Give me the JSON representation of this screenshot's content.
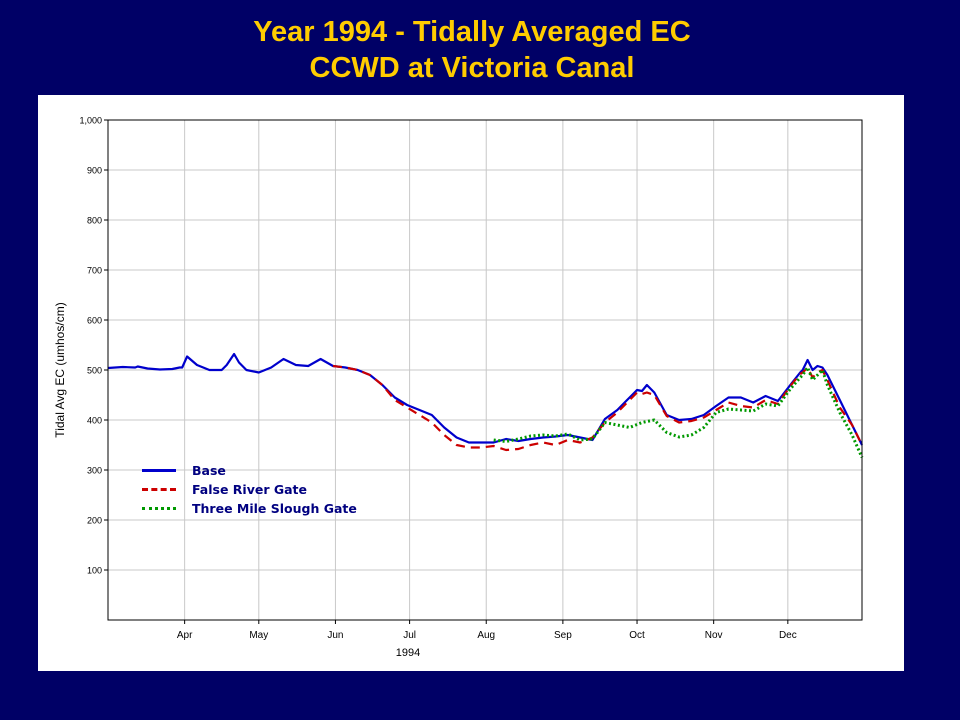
{
  "slide": {
    "title_line1": "Year 1994 - Tidally Averaged EC",
    "title_line2": "CCWD at Victoria Canal",
    "background": "#000066",
    "title_color": "#FFCC00"
  },
  "chart_data": {
    "type": "line",
    "title": "",
    "xlabel": "1994",
    "ylabel": "Tidal Avg EC (umhos/cm)",
    "x_unit": "day_of_year_1994",
    "xlim": [
      60,
      365
    ],
    "ylim": [
      0,
      1000
    ],
    "yticks": [
      100,
      200,
      300,
      400,
      500,
      600,
      700,
      800,
      900,
      1000
    ],
    "ytick_labels": [
      "100",
      "200",
      "300",
      "400",
      "500",
      "600",
      "700",
      "800",
      "900",
      "1,000"
    ],
    "xticks": [
      {
        "day": 91,
        "label": "Apr"
      },
      {
        "day": 121,
        "label": "May"
      },
      {
        "day": 152,
        "label": "Jun"
      },
      {
        "day": 182,
        "label": "Jul"
      },
      {
        "day": 213,
        "label": "Aug"
      },
      {
        "day": 244,
        "label": "Sep"
      },
      {
        "day": 274,
        "label": "Oct"
      },
      {
        "day": 305,
        "label": "Nov"
      },
      {
        "day": 335,
        "label": "Dec"
      }
    ],
    "grid": true,
    "legend_position": "bottom-left",
    "series": [
      {
        "name": "Base",
        "color": "#0000CC",
        "dash": "solid",
        "x": [
          60,
          66,
          71,
          72,
          76,
          81,
          86,
          89,
          90,
          92,
          96,
          101,
          106,
          108,
          111,
          113,
          116,
          121,
          126,
          131,
          136,
          141,
          146,
          151,
          156,
          161,
          166,
          171,
          176,
          181,
          186,
          191,
          196,
          201,
          206,
          211,
          216,
          221,
          226,
          231,
          236,
          241,
          246,
          251,
          256,
          261,
          266,
          268,
          270,
          272,
          274,
          276,
          278,
          281,
          286,
          291,
          296,
          301,
          306,
          311,
          316,
          321,
          326,
          331,
          336,
          340,
          341,
          343,
          345,
          347,
          349,
          351,
          356,
          361,
          365
        ],
        "y": [
          504,
          506,
          505,
          507,
          503,
          501,
          502,
          505,
          505,
          527,
          510,
          500,
          500,
          510,
          532,
          515,
          500,
          495,
          505,
          522,
          510,
          508,
          522,
          508,
          505,
          500,
          490,
          470,
          445,
          430,
          420,
          410,
          385,
          365,
          355,
          355,
          355,
          362,
          358,
          362,
          365,
          367,
          370,
          365,
          360,
          402,
          420,
          430,
          440,
          450,
          460,
          458,
          470,
          455,
          410,
          400,
          402,
          410,
          428,
          445,
          445,
          435,
          448,
          438,
          470,
          495,
          500,
          520,
          500,
          508,
          505,
          490,
          440,
          390,
          350
        ]
      },
      {
        "name": "False River Gate",
        "color": "#CC0000",
        "dash": "dashed",
        "x": [
          151,
          156,
          161,
          166,
          171,
          176,
          181,
          186,
          191,
          196,
          201,
          206,
          211,
          216,
          221,
          226,
          231,
          236,
          241,
          246,
          251,
          256,
          261,
          266,
          268,
          270,
          272,
          274,
          276,
          278,
          281,
          286,
          291,
          296,
          301,
          306,
          311,
          316,
          321,
          326,
          331,
          336,
          340,
          341,
          343,
          345,
          347,
          349,
          351,
          356,
          361,
          365
        ],
        "y": [
          508,
          505,
          500,
          490,
          470,
          440,
          425,
          410,
          395,
          370,
          350,
          345,
          345,
          348,
          340,
          342,
          350,
          355,
          350,
          360,
          355,
          365,
          395,
          415,
          425,
          435,
          445,
          455,
          452,
          455,
          450,
          408,
          395,
          398,
          405,
          420,
          435,
          428,
          425,
          440,
          432,
          468,
          492,
          495,
          505,
          485,
          495,
          500,
          480,
          425,
          390,
          350
        ]
      },
      {
        "name": "Three Mile Slough Gate",
        "color": "#009900",
        "dash": "dotted",
        "x": [
          216,
          221,
          226,
          231,
          236,
          241,
          246,
          251,
          256,
          261,
          266,
          271,
          276,
          281,
          286,
          291,
          296,
          301,
          306,
          311,
          316,
          321,
          326,
          331,
          336,
          340,
          341,
          343,
          345,
          347,
          349,
          351,
          356,
          361,
          365
        ],
        "y": [
          360,
          357,
          362,
          368,
          370,
          368,
          372,
          360,
          362,
          395,
          390,
          385,
          395,
          400,
          375,
          366,
          370,
          385,
          415,
          422,
          420,
          418,
          432,
          428,
          462,
          485,
          490,
          505,
          480,
          490,
          500,
          470,
          415,
          370,
          325
        ]
      }
    ]
  }
}
